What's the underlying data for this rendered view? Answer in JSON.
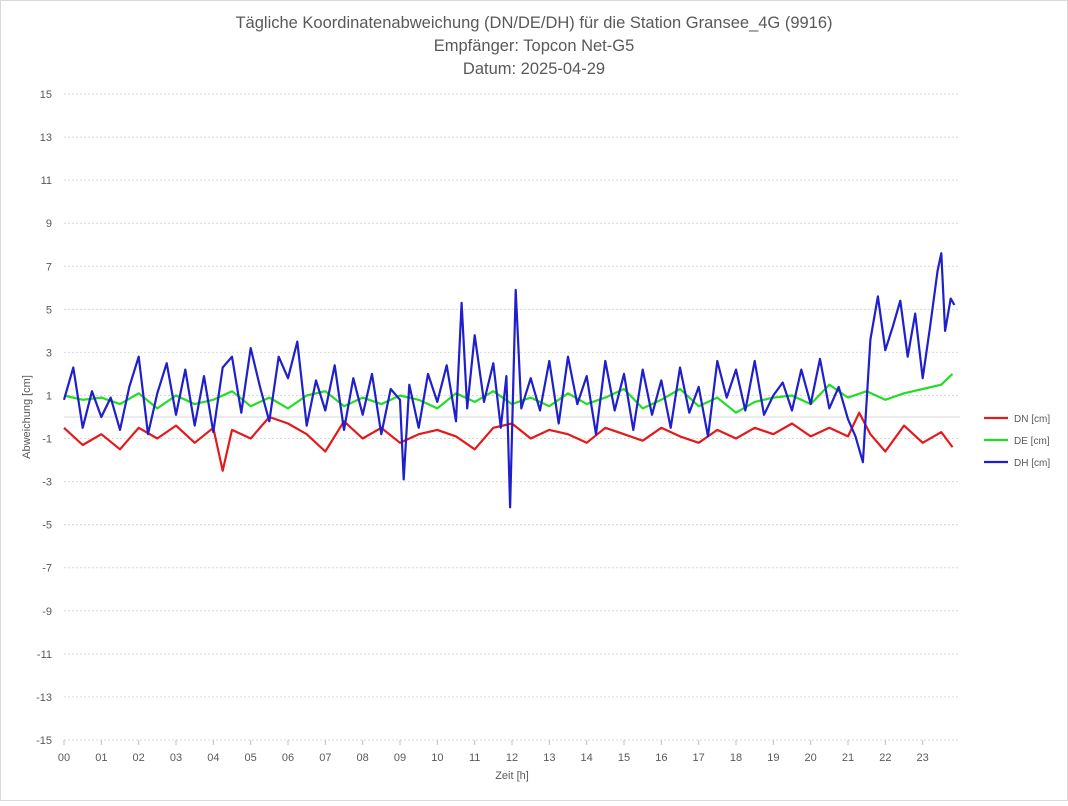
{
  "chart_data": {
    "type": "line",
    "title_lines": [
      "Tägliche Koordinatenabweichung (DN/DE/DH) für die Station Gransee_4G (9916)",
      "Empfänger: Topcon Net-G5",
      "Datum: 2025-04-29"
    ],
    "xlabel": "Zeit [h]",
    "ylabel": "Abweichung [cm]",
    "xlim": [
      0,
      24
    ],
    "ylim": [
      -15,
      15
    ],
    "x_ticks": [
      "00",
      "01",
      "02",
      "03",
      "04",
      "05",
      "06",
      "07",
      "08",
      "09",
      "10",
      "11",
      "12",
      "13",
      "14",
      "15",
      "16",
      "17",
      "18",
      "19",
      "20",
      "21",
      "22",
      "23"
    ],
    "y_ticks": [
      15,
      13,
      11,
      9,
      7,
      5,
      3,
      1,
      -1,
      -3,
      -5,
      -7,
      -9,
      -11,
      -13,
      -15
    ],
    "grid": "horizontal-dotted",
    "legend_position": "right",
    "series": [
      {
        "name": "DN [cm]",
        "color": "#e31a1c",
        "x": [
          0,
          0.5,
          1,
          1.5,
          2,
          2.5,
          3,
          3.5,
          4,
          4.25,
          4.5,
          5,
          5.5,
          6,
          6.5,
          7,
          7.5,
          8,
          8.5,
          9,
          9.5,
          10,
          10.5,
          11,
          11.5,
          12,
          12.5,
          13,
          13.5,
          14,
          14.5,
          15,
          15.5,
          16,
          16.5,
          17,
          17.5,
          18,
          18.5,
          19,
          19.5,
          20,
          20.5,
          21,
          21.3,
          21.6,
          22,
          22.5,
          23,
          23.5,
          23.8
        ],
        "values": [
          -0.5,
          -1.3,
          -0.8,
          -1.5,
          -0.5,
          -1,
          -0.4,
          -1.2,
          -0.5,
          -2.5,
          -0.6,
          -1,
          0,
          -0.3,
          -0.8,
          -1.6,
          -0.2,
          -1,
          -0.5,
          -1.2,
          -0.8,
          -0.6,
          -0.9,
          -1.5,
          -0.5,
          -0.3,
          -1,
          -0.6,
          -0.8,
          -1.2,
          -0.5,
          -0.8,
          -1.1,
          -0.5,
          -0.9,
          -1.2,
          -0.6,
          -1,
          -0.5,
          -0.8,
          -0.3,
          -0.9,
          -0.5,
          -0.9,
          0.2,
          -0.8,
          -1.6,
          -0.4,
          -1.2,
          -0.7,
          -1.4
        ]
      },
      {
        "name": "DE [cm]",
        "color": "#22dd22",
        "x": [
          0,
          0.5,
          1,
          1.5,
          2,
          2.5,
          3,
          3.5,
          4,
          4.5,
          5,
          5.5,
          6,
          6.5,
          7,
          7.5,
          8,
          8.5,
          9,
          9.5,
          10,
          10.5,
          11,
          11.5,
          12,
          12.5,
          13,
          13.5,
          14,
          14.5,
          15,
          15.5,
          16,
          16.5,
          17,
          17.5,
          18,
          18.5,
          19,
          19.5,
          20,
          20.5,
          21,
          21.5,
          22,
          22.5,
          23,
          23.5,
          23.8
        ],
        "values": [
          1,
          0.8,
          0.9,
          0.6,
          1.1,
          0.4,
          1,
          0.6,
          0.8,
          1.2,
          0.5,
          0.9,
          0.4,
          1,
          1.2,
          0.5,
          0.9,
          0.6,
          1,
          0.8,
          0.4,
          1.1,
          0.7,
          1.2,
          0.6,
          0.9,
          0.5,
          1.1,
          0.6,
          0.9,
          1.3,
          0.4,
          0.8,
          1.3,
          0.5,
          0.9,
          0.2,
          0.7,
          0.9,
          1,
          0.6,
          1.5,
          0.9,
          1.2,
          0.8,
          1.1,
          1.3,
          1.5,
          2
        ]
      },
      {
        "name": "DH [cm]",
        "color": "#1f1fcc",
        "x": [
          0,
          0.25,
          0.5,
          0.75,
          1,
          1.25,
          1.5,
          1.75,
          2,
          2.25,
          2.5,
          2.75,
          3,
          3.25,
          3.5,
          3.75,
          4,
          4.25,
          4.5,
          4.75,
          5,
          5.25,
          5.5,
          5.75,
          6,
          6.25,
          6.5,
          6.75,
          7,
          7.25,
          7.5,
          7.75,
          8,
          8.25,
          8.5,
          8.75,
          9,
          9.1,
          9.25,
          9.5,
          9.75,
          10,
          10.25,
          10.5,
          10.65,
          10.8,
          11,
          11.25,
          11.5,
          11.7,
          11.85,
          11.95,
          12.1,
          12.25,
          12.5,
          12.75,
          13,
          13.25,
          13.5,
          13.75,
          14,
          14.25,
          14.5,
          14.75,
          15,
          15.25,
          15.5,
          15.75,
          16,
          16.25,
          16.5,
          16.75,
          17,
          17.25,
          17.5,
          17.75,
          18,
          18.25,
          18.5,
          18.75,
          19,
          19.25,
          19.5,
          19.75,
          20,
          20.25,
          20.5,
          20.75,
          21,
          21.2,
          21.4,
          21.6,
          21.8,
          22,
          22.2,
          22.4,
          22.6,
          22.8,
          23,
          23.2,
          23.4,
          23.5,
          23.6,
          23.75,
          23.85
        ],
        "values": [
          0.8,
          2.3,
          -0.5,
          1.2,
          0,
          0.9,
          -0.6,
          1.4,
          2.8,
          -0.8,
          1.1,
          2.5,
          0.1,
          2.2,
          -0.4,
          1.9,
          -0.7,
          2.3,
          2.8,
          0.2,
          3.2,
          1.4,
          -0.2,
          2.8,
          1.8,
          3.5,
          -0.4,
          1.7,
          0.3,
          2.4,
          -0.6,
          1.8,
          0.1,
          2,
          -0.8,
          1.3,
          0.8,
          -2.9,
          1.5,
          -0.5,
          2,
          0.7,
          2.4,
          -0.2,
          5.3,
          0.4,
          3.8,
          0.7,
          2.5,
          -0.5,
          1.9,
          -4.2,
          5.9,
          0.4,
          1.8,
          0.3,
          2.6,
          -0.3,
          2.8,
          0.6,
          1.9,
          -0.8,
          2.6,
          0.3,
          2,
          -0.6,
          2.2,
          0.1,
          1.7,
          -0.5,
          2.3,
          0.2,
          1.4,
          -0.9,
          2.6,
          0.9,
          2.2,
          0.3,
          2.6,
          0.1,
          1,
          1.6,
          0.3,
          2.2,
          0.6,
          2.7,
          0.4,
          1.4,
          -0.1,
          -0.9,
          -2.1,
          3.6,
          5.6,
          3.1,
          4.2,
          5.4,
          2.8,
          4.8,
          1.8,
          4.2,
          6.8,
          7.6,
          4,
          5.5,
          5.2
        ]
      }
    ]
  }
}
